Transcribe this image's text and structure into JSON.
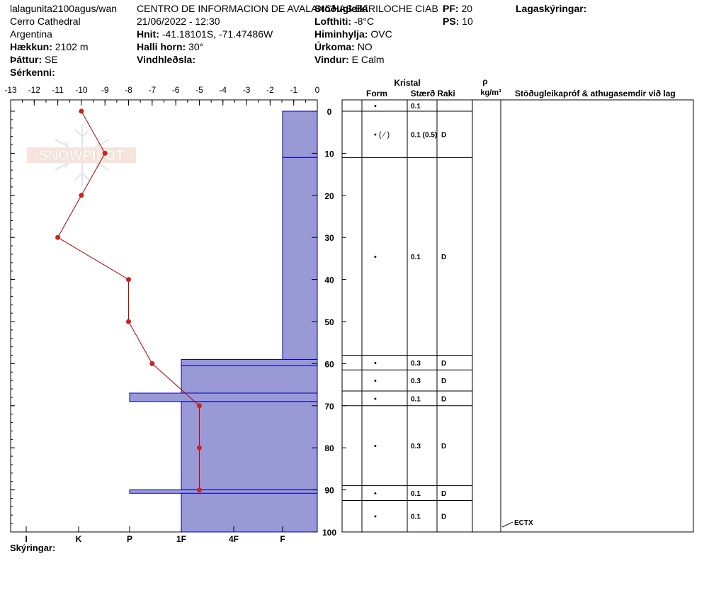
{
  "header": {
    "site": "lalagunita2100agus/wan",
    "location": "Cerro Cathedral",
    "country": "Argentina",
    "elevation_label": "Hækkun:",
    "elevation_value": "2102 m",
    "aspect_label": "Þáttur:",
    "aspect_value": "SE",
    "specifics_label": "Sérkenni:",
    "org": "CENTRO DE INFORMACION DE AVALANCHAS BARILOCHE CIAB",
    "station_label": "Stöðugleiki",
    "datetime": "21/06/2022 - 12:30",
    "coords_label": "Hnit:",
    "coords_value": "-41.18101S, -71.47486W",
    "slope_label": "Halli horn:",
    "slope_value": "30°",
    "windload_label": "Vindhleðsla:",
    "airtemp_label": "Lofthiti:",
    "airtemp_value": "-8°C",
    "sky_label": "Himinhylja:",
    "sky_value": "OVC",
    "precip_label": "Úrkoma:",
    "precip_value": "NO",
    "wind_label": "Vindur:",
    "wind_value": "E Calm",
    "pf_label": "PF:",
    "pf_value": "20",
    "ps_label": "PS:",
    "ps_value": "10",
    "layers_label": "Lagaskýringar:"
  },
  "watermark": "SNOWPILOT",
  "legend_label": "Skýringar:",
  "table_headers": {
    "kristal": "Kristal",
    "form": "Form",
    "size": "Stærð",
    "wetness": "Raki",
    "rho": "ρ",
    "density_unit": "kg/m³",
    "stability": "Stöðugleikapróf & athugasemdir við lag"
  },
  "chart_data": {
    "type": "line",
    "temperature_axis": {
      "ticks": [
        -13,
        -12,
        -11,
        -10,
        -9,
        -8,
        -7,
        -6,
        -5,
        -4,
        -3,
        -2,
        -1,
        0
      ],
      "range": [
        -13,
        0
      ]
    },
    "depth_axis": {
      "ticks": [
        0,
        10,
        20,
        30,
        40,
        50,
        60,
        70,
        80,
        90,
        100
      ],
      "range": [
        0,
        100
      ]
    },
    "hardness_axis": {
      "labels": [
        "I",
        "K",
        "P",
        "1F",
        "4F",
        "F"
      ]
    },
    "temperature_profile": [
      {
        "depth": 0,
        "temp": -10
      },
      {
        "depth": 10,
        "temp": -9
      },
      {
        "depth": 20,
        "temp": -10
      },
      {
        "depth": 30,
        "temp": -11
      },
      {
        "depth": 40,
        "temp": -8
      },
      {
        "depth": 50,
        "temp": -8
      },
      {
        "depth": 60,
        "temp": -7
      },
      {
        "depth": 70,
        "temp": -5
      },
      {
        "depth": 80,
        "temp": -5
      },
      {
        "depth": 90,
        "temp": -5
      }
    ],
    "hardness_profile": [
      {
        "top": 0,
        "bottom": 11,
        "hardness": "F"
      },
      {
        "top": 11,
        "bottom": 59,
        "hardness": "F"
      },
      {
        "top": 59,
        "bottom": 60.5,
        "hardness": "1F"
      },
      {
        "top": 60.5,
        "bottom": 67,
        "hardness": "1F"
      },
      {
        "top": 67,
        "bottom": 69,
        "hardness": "P"
      },
      {
        "top": 69,
        "bottom": 90,
        "hardness": "1F"
      },
      {
        "top": 90,
        "bottom": 90.8,
        "hardness": "P"
      },
      {
        "top": 90.8,
        "bottom": 100,
        "hardness": "1F"
      }
    ],
    "layers": [
      {
        "top": -3,
        "bottom": 0,
        "form": "•",
        "size": "0.1",
        "wetness": ""
      },
      {
        "top": 0,
        "bottom": 11,
        "form": "• ( ⁄ )",
        "size": "0.1 (0.5)",
        "wetness": "D"
      },
      {
        "top": 11,
        "bottom": 58,
        "form": "•",
        "size": "0.1",
        "wetness": "D"
      },
      {
        "top": 58,
        "bottom": 61.5,
        "form": "•",
        "size": "0.3",
        "wetness": "D"
      },
      {
        "top": 61.5,
        "bottom": 66.5,
        "form": "•",
        "size": "0.3",
        "wetness": "D"
      },
      {
        "top": 66.5,
        "bottom": 70,
        "form": "•",
        "size": "0.1",
        "wetness": "D"
      },
      {
        "top": 70,
        "bottom": 89,
        "form": "•",
        "size": "0.3",
        "wetness": "D"
      },
      {
        "top": 89,
        "bottom": 92.5,
        "form": "•",
        "size": "0.1",
        "wetness": "D"
      },
      {
        "top": 92.5,
        "bottom": 100,
        "form": "•",
        "size": "0.1",
        "wetness": "D"
      }
    ],
    "stability_tests": [
      {
        "depth": 99,
        "label": "ECTX"
      }
    ],
    "colors": {
      "hardness_fill": "#9999d6",
      "hardness_line": "#0000aa",
      "temp_line": "#aa0000",
      "temp_point": "#cc2222"
    }
  }
}
